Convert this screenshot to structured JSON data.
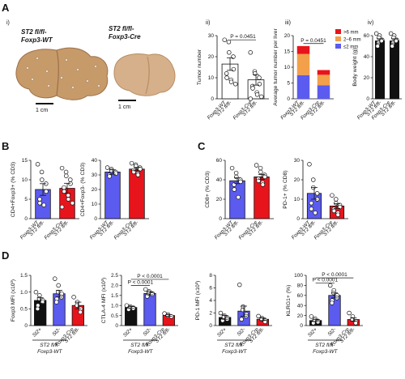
{
  "panel_letters": {
    "A": "A",
    "B": "B",
    "C": "C",
    "D": "D"
  },
  "panelA": {
    "sublabels": {
      "i": "i)",
      "ii": "ii)",
      "iii": "iii)",
      "iv": "iv)"
    },
    "liver_wt_line1": "ST2 fl/fl-",
    "liver_wt_line2": "Foxp3-WT",
    "liver_cre_line1": "ST2 fl/fl-",
    "liver_cre_line2": "Foxp3-Cre",
    "scalebar_left": "1 cm",
    "scalebar_right": "1 cm",
    "liver_colors": {
      "wt": "#c79a6a",
      "cre": "#d6b08a",
      "wt_dark": "#9c7049",
      "cre_dark": "#b88d62"
    }
  },
  "colors": {
    "black": "#111111",
    "blue": "#5b5bf0",
    "red": "#e8141c",
    "orange": "#f2a04a",
    "gray": "#888888"
  },
  "chart_data": [
    {
      "id": "A-ii",
      "type": "bar",
      "ylabel": "Tumor number",
      "ylim": [
        0,
        30
      ],
      "yticks": [
        0,
        10,
        20,
        30
      ],
      "categories": [
        "ST2 fl/fl-Foxp3-WT",
        "ST2 fl/fl-Foxp3-Cre"
      ],
      "tick_lines": [
        [
          "ST2 fl/fl-",
          "Foxp3-WT"
        ],
        [
          "ST2 fl/fl-",
          "Foxp3-Cre"
        ]
      ],
      "bar_colors": [
        "#ffffff",
        "#ffffff"
      ],
      "values": [
        16.5,
        9
      ],
      "errors": [
        3,
        2.5
      ],
      "points": [
        [
          28,
          27,
          22,
          20,
          14,
          12,
          10,
          9,
          8,
          7
        ],
        [
          22,
          13,
          12,
          10,
          7,
          6,
          5,
          3,
          2,
          1,
          0
        ]
      ],
      "annotations": [
        {
          "text": "P = 0.0451",
          "from": 0,
          "to": 1,
          "y": 28
        }
      ]
    },
    {
      "id": "A-iii",
      "type": "stacked-bar",
      "ylabel": "Average tumor number per liver",
      "ylim": [
        0,
        20
      ],
      "yticks": [
        0,
        5,
        10,
        15,
        20
      ],
      "categories": [
        "ST2 fl/fl-Foxp3-WT",
        "ST2 fl/fl-Foxp3-Cre"
      ],
      "tick_lines": [
        [
          "ST2 fl/fl-",
          "Foxp3-WT"
        ],
        [
          "ST2 fl/fl-",
          "Foxp3-Cre"
        ]
      ],
      "series": [
        {
          "name": "≤2 mm",
          "color": "#5b5bf0",
          "values": [
            7.5,
            4.3
          ]
        },
        {
          "name": "2–6 mm",
          "color": "#f2a04a",
          "values": [
            6.7,
            3.3
          ]
        },
        {
          "name": ">6 mm",
          "color": "#e8141c",
          "values": [
            2.5,
            1.5
          ]
        }
      ],
      "legend_position": "top-right",
      "annotations": [
        {
          "text": "P = 0.0451",
          "from": 0,
          "to": 1,
          "y": 17.5
        }
      ]
    },
    {
      "id": "A-iv",
      "type": "bar",
      "ylabel": "Body weight (g)",
      "ylim": [
        0,
        60
      ],
      "yticks": [
        0,
        20,
        40,
        60
      ],
      "categories": [
        "ST2 fl/fl-Foxp3-WT",
        "ST2 fl/fl-Foxp3-Cre"
      ],
      "tick_lines": [
        [
          "ST2 fl/fl-",
          "Foxp3-WT"
        ],
        [
          "ST2 fl/fl-",
          "Foxp3-Cre"
        ]
      ],
      "bar_colors": [
        "#111111",
        "#111111"
      ],
      "values": [
        55,
        55
      ],
      "errors": [
        2,
        2
      ],
      "points": [
        [
          62,
          60,
          58,
          56,
          55,
          53,
          50
        ],
        [
          62,
          60,
          58,
          56,
          55,
          53,
          50
        ]
      ],
      "annotations": []
    },
    {
      "id": "B-1",
      "type": "bar",
      "ylabel": "CD4+Foxp3+ (% CD3)",
      "ylim": [
        0,
        15
      ],
      "yticks": [
        0,
        5,
        10,
        15
      ],
      "categories": [
        "ST2 fl/fl-Foxp3-WT",
        "ST2 fl/fl-Foxp3-Cre"
      ],
      "tick_lines": [
        [
          "ST2 fl/fl-",
          "Foxp3-WT"
        ],
        [
          "ST2 fl/fl-",
          "Foxp3-Cre"
        ]
      ],
      "bar_colors": [
        "#5b5bf0",
        "#e8141c"
      ],
      "values": [
        7.5,
        7.8
      ],
      "errors": [
        1.5,
        1.3
      ],
      "points": [
        [
          14,
          12,
          10,
          9,
          7,
          5,
          4,
          3.5
        ],
        [
          13,
          12,
          11,
          10,
          9,
          8,
          7,
          6,
          5,
          4,
          3
        ]
      ],
      "annotations": []
    },
    {
      "id": "B-2",
      "type": "bar",
      "ylabel": "CD4+Foxp3- (% CD3)",
      "ylim": [
        0,
        40
      ],
      "yticks": [
        0,
        10,
        20,
        30,
        40
      ],
      "categories": [
        "ST2 fl/fl-Foxp3-WT",
        "ST2 fl/fl-Foxp3-Cre"
      ],
      "tick_lines": [
        [
          "ST2 fl/fl-",
          "Foxp3-WT"
        ],
        [
          "ST2 fl/fl-",
          "Foxp3-Cre"
        ]
      ],
      "bar_colors": [
        "#5b5bf0",
        "#e8141c"
      ],
      "values": [
        32,
        34
      ],
      "errors": [
        1.5,
        1.2
      ],
      "points": [
        [
          35,
          34,
          33,
          32,
          31,
          30,
          29
        ],
        [
          38,
          37,
          36,
          35,
          34,
          33,
          32,
          31,
          30
        ]
      ],
      "annotations": []
    },
    {
      "id": "C-1",
      "type": "bar",
      "ylabel": "CD8+ (% CD3)",
      "ylim": [
        0,
        60
      ],
      "yticks": [
        0,
        20,
        40,
        60
      ],
      "categories": [
        "ST2 fl/fl-Foxp3-WT",
        "ST2 fl/fl-Foxp3-Cre"
      ],
      "tick_lines": [
        [
          "ST2 fl/fl-",
          "Foxp3-WT"
        ],
        [
          "ST2 fl/fl-",
          "Foxp3-Cre"
        ]
      ],
      "bar_colors": [
        "#5b5bf0",
        "#e8141c"
      ],
      "values": [
        39,
        43
      ],
      "errors": [
        3,
        2.5
      ],
      "points": [
        [
          52,
          47,
          43,
          40,
          38,
          35,
          30,
          22
        ],
        [
          55,
          52,
          48,
          45,
          43,
          41,
          39,
          37,
          35
        ]
      ],
      "annotations": []
    },
    {
      "id": "C-2",
      "type": "bar",
      "ylabel": "PD-1+ (% CD8)",
      "ylim": [
        0,
        30
      ],
      "yticks": [
        0,
        10,
        20,
        30
      ],
      "categories": [
        "ST2 fl/fl-Foxp3-WT",
        "ST2 fl/fl-Foxp3-Cre"
      ],
      "tick_lines": [
        [
          "ST2 fl/fl-",
          "Foxp3-WT"
        ],
        [
          "ST2 fl/fl-",
          "Foxp3-Cre"
        ]
      ],
      "bar_colors": [
        "#5b5bf0",
        "#e8141c"
      ],
      "values": [
        13,
        6.5
      ],
      "errors": [
        3,
        1.2
      ],
      "points": [
        [
          28,
          20,
          16,
          13,
          10,
          8,
          5,
          3
        ],
        [
          12,
          10,
          8,
          7,
          6,
          5,
          4,
          3,
          2
        ]
      ],
      "annotations": []
    },
    {
      "id": "D-1",
      "type": "bar",
      "ylabel": "Foxp3 MFI (x10³)",
      "ylim": [
        0,
        1.5
      ],
      "yticks": [
        0,
        0.5,
        1.0,
        1.5
      ],
      "ytick_labels": [
        "0",
        "0.5",
        "1.0",
        "1.5"
      ],
      "categories": [
        "St2+ ST2 fl/fl-Foxp3-WT",
        "St2- ST2 fl/fl-Foxp3-WT",
        "ST2 fl/fl-Foxp3-Cre"
      ],
      "tick_lines": [
        [
          "St2+"
        ],
        [
          "St2-"
        ],
        [
          "ST2 fl/fl-",
          "Foxp3-Cre"
        ]
      ],
      "group_label_lines": [
        "ST2 fl/fl-",
        "Foxp3-WT"
      ],
      "bar_colors": [
        "#111111",
        "#5b5bf0",
        "#e8141c"
      ],
      "values": [
        0.75,
        0.95,
        0.6
      ],
      "errors": [
        0.08,
        0.1,
        0.1
      ],
      "points": [
        [
          1.0,
          0.9,
          0.8,
          0.75,
          0.7,
          0.6,
          0.5
        ],
        [
          1.4,
          1.2,
          1.0,
          0.95,
          0.85,
          0.8,
          0.7
        ],
        [
          0.85,
          0.7,
          0.6,
          0.5,
          0.4
        ]
      ],
      "annotations": []
    },
    {
      "id": "D-2",
      "type": "bar",
      "ylabel": "CTLA-4 MFI (x10³)",
      "ylim": [
        0,
        2.5
      ],
      "yticks": [
        0,
        0.5,
        1.0,
        1.5,
        2.0,
        2.5
      ],
      "ytick_labels": [
        "0",
        "0.5",
        "1.0",
        "1.5",
        "2.0",
        "2.5"
      ],
      "categories": [
        "St2+ ST2 fl/fl-Foxp3-WT",
        "St2- ST2 fl/fl-Foxp3-WT",
        "ST2 fl/fl-Foxp3-Cre"
      ],
      "tick_lines": [
        [
          "St2+"
        ],
        [
          "St2-"
        ],
        [
          "ST2 fl/fl-",
          "Foxp3-Cre"
        ]
      ],
      "group_label_lines": [
        "ST2 fl/fl-",
        "Foxp3-WT"
      ],
      "bar_colors": [
        "#111111",
        "#5b5bf0",
        "#e8141c"
      ],
      "values": [
        0.9,
        1.6,
        0.5
      ],
      "errors": [
        0.05,
        0.07,
        0.04
      ],
      "points": [
        [
          1.0,
          0.95,
          0.9,
          0.88,
          0.85,
          0.8
        ],
        [
          1.8,
          1.7,
          1.65,
          1.6,
          1.55,
          1.5,
          1.45
        ],
        [
          0.6,
          0.55,
          0.5,
          0.45
        ]
      ],
      "annotations": [
        {
          "text": "P < 0.0001",
          "from": 0,
          "to": 1,
          "y": 2.0
        },
        {
          "text": "P < 0.0001",
          "from": 0,
          "to": 2,
          "y": 2.3
        }
      ]
    },
    {
      "id": "D-3",
      "type": "bar",
      "ylabel": "PD-1 MFI (x10³)",
      "ylim": [
        0,
        8
      ],
      "yticks": [
        0,
        2,
        4,
        6,
        8
      ],
      "categories": [
        "St2+ ST2 fl/fl-Foxp3-WT",
        "St2- ST2 fl/fl-Foxp3-WT",
        "ST2 fl/fl-Foxp3-Cre"
      ],
      "tick_lines": [
        [
          "St2+"
        ],
        [
          "St2-"
        ],
        [
          "ST2 fl/fl-",
          "Foxp3-Cre"
        ]
      ],
      "group_label_lines": [
        "ST2 fl/fl-",
        "Foxp3-WT"
      ],
      "bar_colors": [
        "#111111",
        "#5b5bf0",
        "#e8141c"
      ],
      "values": [
        1.3,
        2.3,
        1.0
      ],
      "errors": [
        0.3,
        0.8,
        0.2
      ],
      "points": [
        [
          2.0,
          1.6,
          1.4,
          1.2,
          1.0,
          0.8
        ],
        [
          6.5,
          3.0,
          2.5,
          1.8,
          1.5,
          1.0
        ],
        [
          1.5,
          1.2,
          1.0,
          0.8,
          0.6
        ]
      ],
      "annotations": []
    },
    {
      "id": "D-4",
      "type": "bar",
      "ylabel": "KLRG1+ (%)",
      "ylim": [
        0,
        100
      ],
      "yticks": [
        0,
        20,
        40,
        60,
        80,
        100
      ],
      "categories": [
        "St2+ ST2 fl/fl-Foxp3-WT",
        "St2- ST2 fl/fl-Foxp3-WT",
        "ST2 fl/fl-Foxp3-Cre"
      ],
      "tick_lines": [
        [
          "St2+"
        ],
        [
          "St2-"
        ],
        [
          "ST2 fl/fl-",
          "Foxp3-Cre"
        ]
      ],
      "group_label_lines": [
        "ST2 fl/fl-",
        "Foxp3-WT"
      ],
      "bar_colors": [
        "#111111",
        "#5b5bf0",
        "#e8141c"
      ],
      "values": [
        10,
        60,
        12
      ],
      "errors": [
        2,
        5,
        3
      ],
      "points": [
        [
          18,
          14,
          11,
          9,
          7,
          5
        ],
        [
          80,
          70,
          65,
          60,
          55,
          50,
          45
        ],
        [
          25,
          18,
          12,
          8,
          5
        ]
      ],
      "annotations": [
        {
          "text": "P < 0.0001",
          "from": 0,
          "to": 1,
          "y": 85
        },
        {
          "text": "P < 0.0001",
          "from": 0,
          "to": 2,
          "y": 95
        }
      ]
    }
  ]
}
